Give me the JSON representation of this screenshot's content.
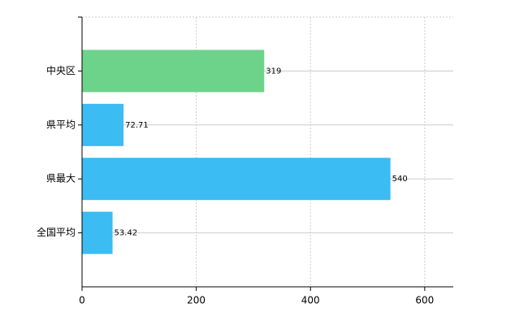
{
  "chart_data": {
    "type": "bar",
    "orientation": "horizontal",
    "categories": [
      "中央区",
      "県平均",
      "県最大",
      "全国平均"
    ],
    "values": [
      319,
      72.71,
      540,
      53.42
    ],
    "colors": [
      "#6dd38a",
      "#3bbcf2",
      "#3bbcf2",
      "#3bbcf2"
    ],
    "xlim": [
      0,
      650
    ],
    "xticks": [
      0,
      200,
      400,
      600
    ],
    "grid": true
  }
}
